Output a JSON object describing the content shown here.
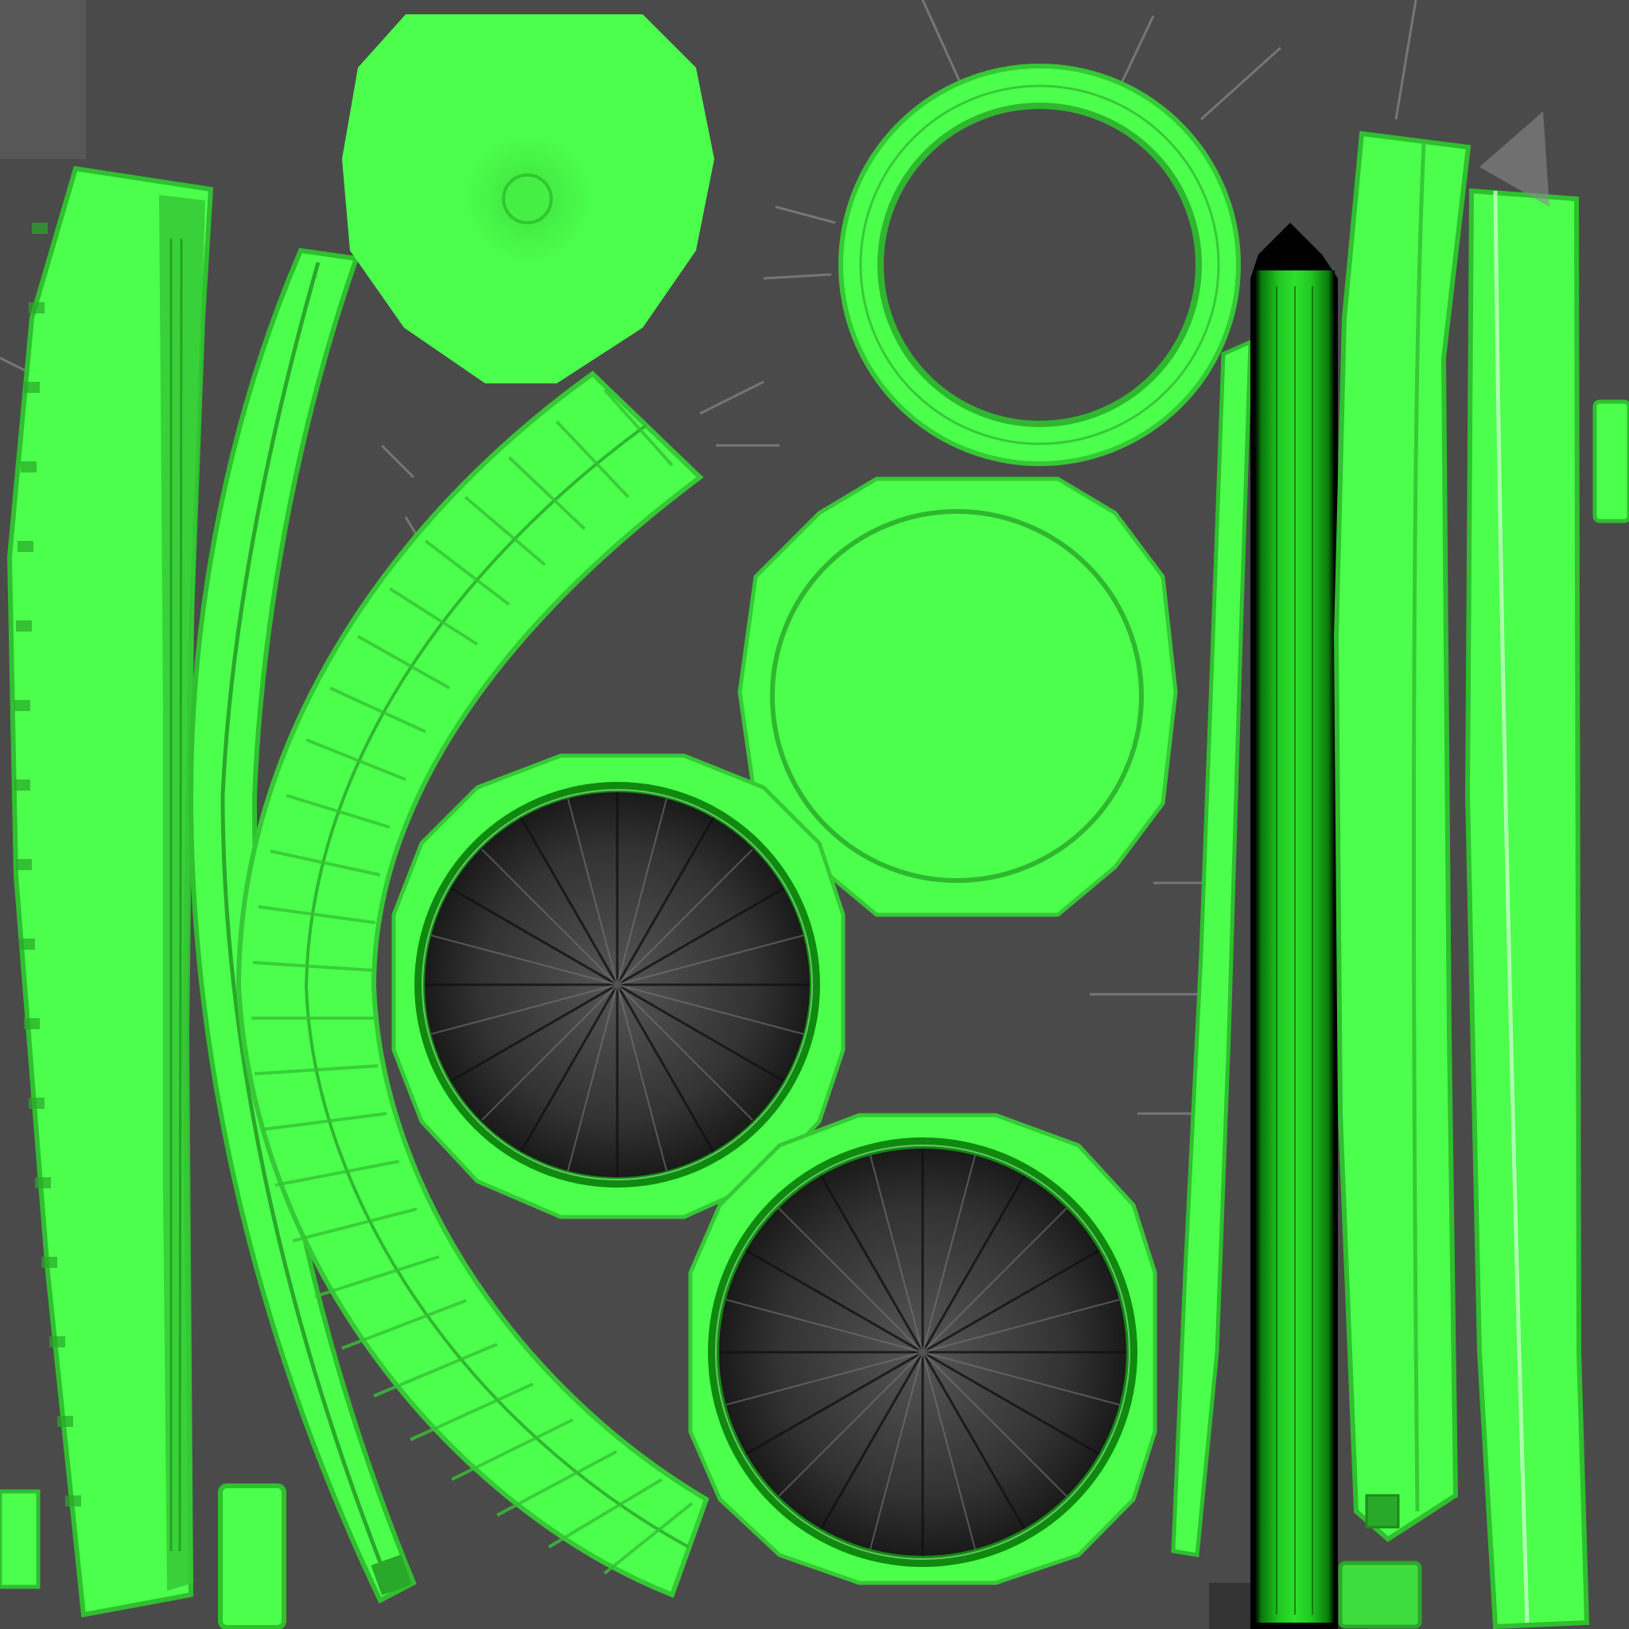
{
  "texture": {
    "background_color": "#4a4a4a",
    "green_bright": "#4cff4c",
    "green_mid": "#3ee03e",
    "green_dark": "#1fa51f",
    "green_deep": "#0d6f0d",
    "edge_light": "#7dff7d",
    "shadow_black": "#111111",
    "highlight": "#c8ffc8"
  }
}
